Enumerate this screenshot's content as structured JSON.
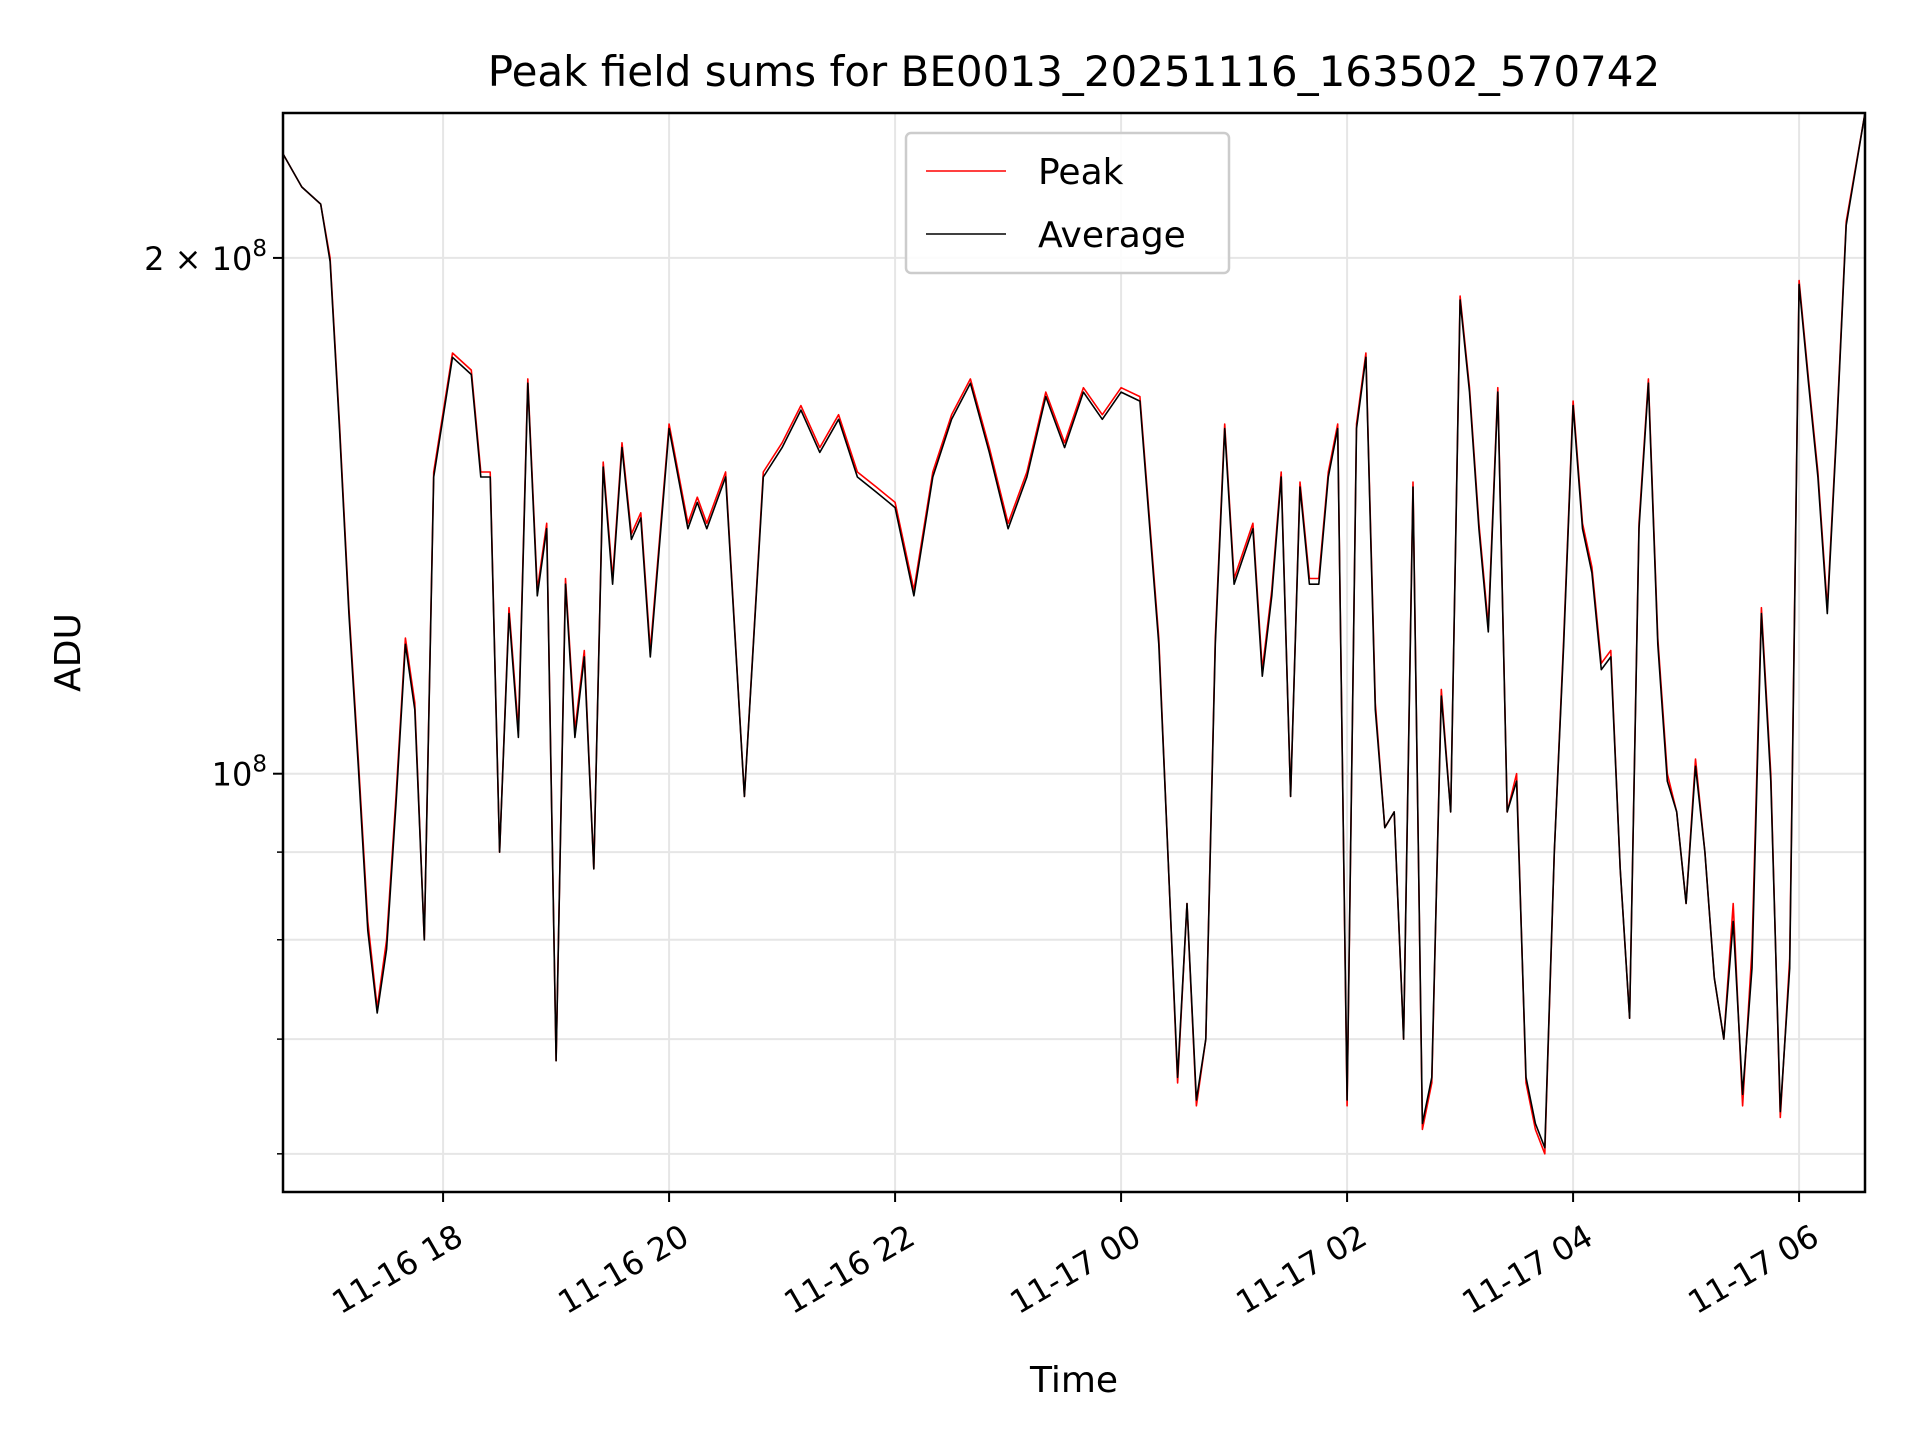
{
  "chart_data": {
    "type": "line",
    "title": "Peak field sums for BE0013_20251116_163502_570742",
    "xlabel": "Time",
    "ylabel": "ADU",
    "y_scale": "log",
    "ylim": [
      57000000,
      243000000
    ],
    "xlim": [
      "11-16 16:35",
      "11-17 06:35"
    ],
    "grid": true,
    "legend_position": "upper center",
    "x_ticks": [
      {
        "value": "11-16 18:00",
        "label": "11-16 18"
      },
      {
        "value": "11-16 20:00",
        "label": "11-16 20"
      },
      {
        "value": "11-16 22:00",
        "label": "11-16 22"
      },
      {
        "value": "11-17 00:00",
        "label": "11-17 00"
      },
      {
        "value": "11-17 02:00",
        "label": "11-17 02"
      },
      {
        "value": "11-17 04:00",
        "label": "11-17 04"
      },
      {
        "value": "11-17 06:00",
        "label": "11-17 06"
      }
    ],
    "y_ticks_major": [
      {
        "value": 100000000,
        "base": "10",
        "exp": "8",
        "coef": ""
      },
      {
        "value": 200000000,
        "base": "10",
        "exp": "8",
        "coef": "2 × "
      }
    ],
    "y_ticks_minor": [
      60000000,
      70000000,
      80000000,
      90000000
    ],
    "series": [
      {
        "name": "Peak",
        "color": "#ff0000",
        "x": [
          "11-16 16:35",
          "11-16 16:45",
          "11-16 16:55",
          "11-16 17:00",
          "11-16 17:05",
          "11-16 17:10",
          "11-16 17:15",
          "11-16 17:20",
          "11-16 17:25",
          "11-16 17:30",
          "11-16 17:35",
          "11-16 17:40",
          "11-16 17:45",
          "11-16 17:50",
          "11-16 17:55",
          "11-16 18:05",
          "11-16 18:15",
          "11-16 18:20",
          "11-16 18:25",
          "11-16 18:30",
          "11-16 18:35",
          "11-16 18:40",
          "11-16 18:45",
          "11-16 18:50",
          "11-16 18:55",
          "11-16 19:00",
          "11-16 19:05",
          "11-16 19:10",
          "11-16 19:15",
          "11-16 19:20",
          "11-16 19:25",
          "11-16 19:30",
          "11-16 19:35",
          "11-16 19:40",
          "11-16 19:45",
          "11-16 19:50",
          "11-16 20:00",
          "11-16 20:10",
          "11-16 20:15",
          "11-16 20:20",
          "11-16 20:30",
          "11-16 20:40",
          "11-16 20:50",
          "11-16 21:00",
          "11-16 21:10",
          "11-16 21:20",
          "11-16 21:30",
          "11-16 21:40",
          "11-16 21:50",
          "11-16 22:00",
          "11-16 22:10",
          "11-16 22:20",
          "11-16 22:30",
          "11-16 22:40",
          "11-16 22:50",
          "11-16 23:00",
          "11-16 23:10",
          "11-16 23:20",
          "11-16 23:30",
          "11-16 23:40",
          "11-16 23:50",
          "11-17 00:00",
          "11-17 00:10",
          "11-17 00:20",
          "11-17 00:30",
          "11-17 00:35",
          "11-17 00:40",
          "11-17 00:45",
          "11-17 00:50",
          "11-17 00:55",
          "11-17 01:00",
          "11-17 01:10",
          "11-17 01:15",
          "11-17 01:20",
          "11-17 01:25",
          "11-17 01:30",
          "11-17 01:35",
          "11-17 01:40",
          "11-17 01:45",
          "11-17 01:50",
          "11-17 01:55",
          "11-17 02:00",
          "11-17 02:05",
          "11-17 02:10",
          "11-17 02:15",
          "11-17 02:20",
          "11-17 02:25",
          "11-17 02:30",
          "11-17 02:35",
          "11-17 02:40",
          "11-17 02:45",
          "11-17 02:50",
          "11-17 02:55",
          "11-17 03:00",
          "11-17 03:05",
          "11-17 03:10",
          "11-17 03:15",
          "11-17 03:20",
          "11-17 03:25",
          "11-17 03:30",
          "11-17 03:35",
          "11-17 03:40",
          "11-17 03:45",
          "11-17 03:50",
          "11-17 03:55",
          "11-17 04:00",
          "11-17 04:05",
          "11-17 04:10",
          "11-17 04:15",
          "11-17 04:20",
          "11-17 04:25",
          "11-17 04:30",
          "11-17 04:35",
          "11-17 04:40",
          "11-17 04:45",
          "11-17 04:50",
          "11-17 04:55",
          "11-17 05:00",
          "11-17 05:05",
          "11-17 05:10",
          "11-17 05:15",
          "11-17 05:20",
          "11-17 05:25",
          "11-17 05:30",
          "11-17 05:35",
          "11-17 05:40",
          "11-17 05:45",
          "11-17 05:50",
          "11-17 05:55",
          "11-17 06:00",
          "11-17 06:05",
          "11-17 06:10",
          "11-17 06:15",
          "11-17 06:20",
          "11-17 06:25",
          "11-17 06:35"
        ],
        "y": [
          230000000,
          220000000,
          215000000,
          200000000,
          160000000,
          125000000,
          102000000,
          82000000,
          73000000,
          80000000,
          97000000,
          120000000,
          110000000,
          80000000,
          150000000,
          176000000,
          172000000,
          150000000,
          150000000,
          90000000,
          125000000,
          106000000,
          170000000,
          128000000,
          140000000,
          68000000,
          130000000,
          106000000,
          118000000,
          88000000,
          152000000,
          130000000,
          156000000,
          138000000,
          142000000,
          118000000,
          160000000,
          140000000,
          145000000,
          140000000,
          150000000,
          97000000,
          150000000,
          156000000,
          164000000,
          155000000,
          162000000,
          150000000,
          147000000,
          144000000,
          128000000,
          150000000,
          162000000,
          170000000,
          155000000,
          140000000,
          150000000,
          167000000,
          156000000,
          168000000,
          162000000,
          168000000,
          166000000,
          120000000,
          66000000,
          84000000,
          64000000,
          70000000,
          120000000,
          160000000,
          130000000,
          140000000,
          115000000,
          128000000,
          150000000,
          97000000,
          148000000,
          130000000,
          130000000,
          150000000,
          160000000,
          64000000,
          160000000,
          176000000,
          110000000,
          93000000,
          95000000,
          70000000,
          148000000,
          62000000,
          66000000,
          112000000,
          95000000,
          190000000,
          168000000,
          140000000,
          122000000,
          168000000,
          95000000,
          100000000,
          66000000,
          62000000,
          60000000,
          90000000,
          120000000,
          165000000,
          140000000,
          132000000,
          116000000,
          118000000,
          88000000,
          72000000,
          140000000,
          170000000,
          120000000,
          100000000,
          95000000,
          84000000,
          102000000,
          90000000,
          76000000,
          70000000,
          84000000,
          64000000,
          79000000,
          125000000,
          100000000,
          63000000,
          78000000,
          194000000,
          170000000,
          150000000,
          125000000,
          160000000,
          210000000,
          243000000
        ]
      },
      {
        "name": "Average",
        "color": "#000000",
        "x": [
          "11-16 16:35",
          "11-16 16:45",
          "11-16 16:55",
          "11-16 17:00",
          "11-16 17:05",
          "11-16 17:10",
          "11-16 17:15",
          "11-16 17:20",
          "11-16 17:25",
          "11-16 17:30",
          "11-16 17:35",
          "11-16 17:40",
          "11-16 17:45",
          "11-16 17:50",
          "11-16 17:55",
          "11-16 18:05",
          "11-16 18:15",
          "11-16 18:20",
          "11-16 18:25",
          "11-16 18:30",
          "11-16 18:35",
          "11-16 18:40",
          "11-16 18:45",
          "11-16 18:50",
          "11-16 18:55",
          "11-16 19:00",
          "11-16 19:05",
          "11-16 19:10",
          "11-16 19:15",
          "11-16 19:20",
          "11-16 19:25",
          "11-16 19:30",
          "11-16 19:35",
          "11-16 19:40",
          "11-16 19:45",
          "11-16 19:50",
          "11-16 20:00",
          "11-16 20:10",
          "11-16 20:15",
          "11-16 20:20",
          "11-16 20:30",
          "11-16 20:40",
          "11-16 20:50",
          "11-16 21:00",
          "11-16 21:10",
          "11-16 21:20",
          "11-16 21:30",
          "11-16 21:40",
          "11-16 21:50",
          "11-16 22:00",
          "11-16 22:10",
          "11-16 22:20",
          "11-16 22:30",
          "11-16 22:40",
          "11-16 22:50",
          "11-16 23:00",
          "11-16 23:10",
          "11-16 23:20",
          "11-16 23:30",
          "11-16 23:40",
          "11-16 23:50",
          "11-17 00:00",
          "11-17 00:10",
          "11-17 00:20",
          "11-17 00:30",
          "11-17 00:35",
          "11-17 00:40",
          "11-17 00:45",
          "11-17 00:50",
          "11-17 00:55",
          "11-17 01:00",
          "11-17 01:10",
          "11-17 01:15",
          "11-17 01:20",
          "11-17 01:25",
          "11-17 01:30",
          "11-17 01:35",
          "11-17 01:40",
          "11-17 01:45",
          "11-17 01:50",
          "11-17 01:55",
          "11-17 02:00",
          "11-17 02:05",
          "11-17 02:10",
          "11-17 02:15",
          "11-17 02:20",
          "11-17 02:25",
          "11-17 02:30",
          "11-17 02:35",
          "11-17 02:40",
          "11-17 02:45",
          "11-17 02:50",
          "11-17 02:55",
          "11-17 03:00",
          "11-17 03:05",
          "11-17 03:10",
          "11-17 03:15",
          "11-17 03:20",
          "11-17 03:25",
          "11-17 03:30",
          "11-17 03:35",
          "11-17 03:40",
          "11-17 03:45",
          "11-17 03:50",
          "11-17 03:55",
          "11-17 04:00",
          "11-17 04:05",
          "11-17 04:10",
          "11-17 04:15",
          "11-17 04:20",
          "11-17 04:25",
          "11-17 04:30",
          "11-17 04:35",
          "11-17 04:40",
          "11-17 04:45",
          "11-17 04:50",
          "11-17 04:55",
          "11-17 05:00",
          "11-17 05:05",
          "11-17 05:10",
          "11-17 05:15",
          "11-17 05:20",
          "11-17 05:25",
          "11-17 05:30",
          "11-17 05:35",
          "11-17 05:40",
          "11-17 05:45",
          "11-17 05:50",
          "11-17 05:55",
          "11-17 06:00",
          "11-17 06:05",
          "11-17 06:10",
          "11-17 06:15",
          "11-17 06:20",
          "11-17 06:25",
          "11-17 06:35"
        ],
        "y": [
          230000000,
          220000000,
          215000000,
          199000000,
          159000000,
          124000000,
          101000000,
          81000000,
          72500000,
          79000000,
          96000000,
          119000000,
          109000000,
          80000000,
          149000000,
          175000000,
          171000000,
          149000000,
          149000000,
          90000000,
          124000000,
          105000000,
          169000000,
          127000000,
          139000000,
          68000000,
          129000000,
          105000000,
          117000000,
          88000000,
          151000000,
          129000000,
          155000000,
          137000000,
          141000000,
          117000000,
          159000000,
          139000000,
          144000000,
          139000000,
          149000000,
          97000000,
          149000000,
          155000000,
          163000000,
          154000000,
          161000000,
          149000000,
          146000000,
          143000000,
          127000000,
          149000000,
          161000000,
          169000000,
          154000000,
          139000000,
          149000000,
          166000000,
          155000000,
          167000000,
          161000000,
          167000000,
          165000000,
          119000000,
          66500000,
          84000000,
          64500000,
          70000000,
          119000000,
          159000000,
          129000000,
          139000000,
          114000000,
          127000000,
          149000000,
          97000000,
          147000000,
          129000000,
          129000000,
          149000000,
          159000000,
          64500000,
          159000000,
          175000000,
          109000000,
          93000000,
          95000000,
          70000000,
          147000000,
          62500000,
          66500000,
          111000000,
          95000000,
          189000000,
          167000000,
          139000000,
          121000000,
          167000000,
          95000000,
          99000000,
          66500000,
          62500000,
          60500000,
          90000000,
          119000000,
          164000000,
          139000000,
          131000000,
          115000000,
          117000000,
          88000000,
          72000000,
          139000000,
          169000000,
          119000000,
          99000000,
          95000000,
          84000000,
          101000000,
          90000000,
          76000000,
          70000000,
          82000000,
          65000000,
          77000000,
          124000000,
          99000000,
          63500000,
          77000000,
          193000000,
          169000000,
          149000000,
          124000000,
          159000000,
          209000000,
          243000000
        ]
      }
    ]
  }
}
